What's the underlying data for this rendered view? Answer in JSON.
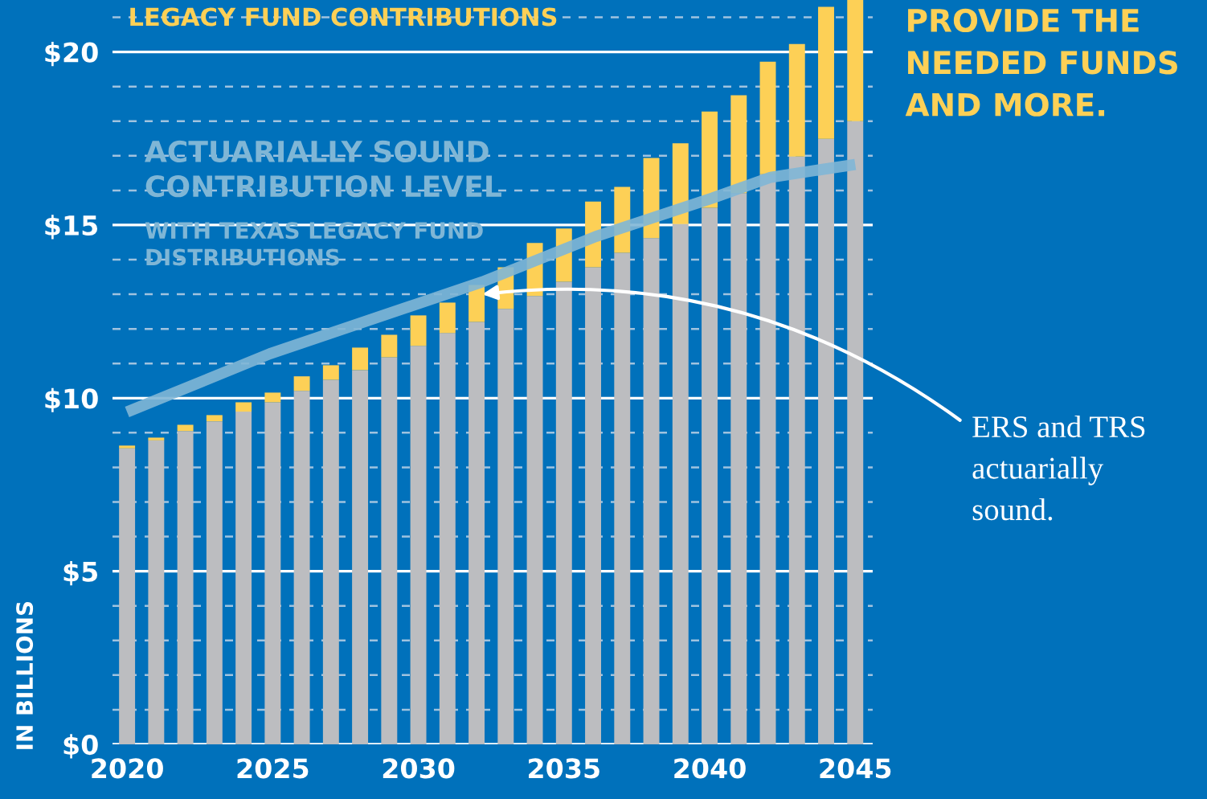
{
  "chart_data": {
    "type": "bar",
    "stacked": true,
    "x": [
      2020,
      2021,
      2022,
      2023,
      2024,
      2025,
      2026,
      2027,
      2028,
      2029,
      2030,
      2031,
      2032,
      2033,
      2034,
      2035,
      2036,
      2037,
      2038,
      2039,
      2040,
      2041,
      2042,
      2043,
      2044,
      2045
    ],
    "xlim": [
      2019.5,
      2045.6
    ],
    "xticks": [
      2020,
      2025,
      2030,
      2035,
      2040,
      2045
    ],
    "ylim": [
      0,
      21.5
    ],
    "yticks": [
      {
        "value": 0,
        "label": "$0"
      },
      {
        "value": 1,
        "label": null
      },
      {
        "value": 2,
        "label": null
      },
      {
        "value": 3,
        "label": null
      },
      {
        "value": 4,
        "label": null
      },
      {
        "value": 5,
        "label": "$5"
      },
      {
        "value": 6,
        "label": null
      },
      {
        "value": 7,
        "label": null
      },
      {
        "value": 8,
        "label": null
      },
      {
        "value": 9,
        "label": null
      },
      {
        "value": 10,
        "label": "$10"
      },
      {
        "value": 11,
        "label": null
      },
      {
        "value": 12,
        "label": null
      },
      {
        "value": 13,
        "label": null
      },
      {
        "value": 14,
        "label": null
      },
      {
        "value": 15,
        "label": "$15"
      },
      {
        "value": 16,
        "label": null
      },
      {
        "value": 17,
        "label": null
      },
      {
        "value": 18,
        "label": null
      },
      {
        "value": 19,
        "label": null
      },
      {
        "value": 20,
        "label": "$20"
      },
      {
        "value": 21,
        "label": null
      }
    ],
    "ylabel": "IN BILLIONS",
    "grid": "y",
    "series": [
      {
        "color": "#bcbdc0",
        "values": [
          8.55,
          8.78,
          9.05,
          9.33,
          9.61,
          9.88,
          10.21,
          10.53,
          10.81,
          11.18,
          11.51,
          11.88,
          12.2,
          12.58,
          12.95,
          13.36,
          13.78,
          14.2,
          14.62,
          15.03,
          15.5,
          15.92,
          16.47,
          16.98,
          17.49,
          18.0
        ]
      },
      {
        "name": "LEGACY FUND CONTRIBUTIONS",
        "color": "#fdd056",
        "values": [
          0.08,
          0.08,
          0.18,
          0.18,
          0.27,
          0.28,
          0.42,
          0.42,
          0.65,
          0.65,
          0.88,
          0.88,
          1.07,
          1.2,
          1.53,
          1.54,
          1.9,
          1.9,
          2.32,
          2.33,
          2.78,
          2.83,
          3.25,
          3.25,
          3.81,
          3.5
        ]
      },
      {
        "name": "ACTUARIALLY SOUND CONTRIBUTION LEVEL",
        "type": "line",
        "color": "#7fb6d6",
        "x": [
          2020,
          2024.9,
          2032.2,
          2036.1,
          2040.1,
          2042.1,
          2045
        ],
        "values": [
          9.6,
          11.28,
          13.36,
          14.67,
          15.78,
          16.38,
          16.75
        ]
      }
    ],
    "annotations": [
      "WITH TEXAS LEGACY FUND DISTRIBUTIONS",
      "PROVIDE THE NEEDED FUNDS AND MORE.",
      {
        "text": "ERS and TRS actuarially sound.",
        "x": 2032.2,
        "y": 13.0
      }
    ]
  }
}
